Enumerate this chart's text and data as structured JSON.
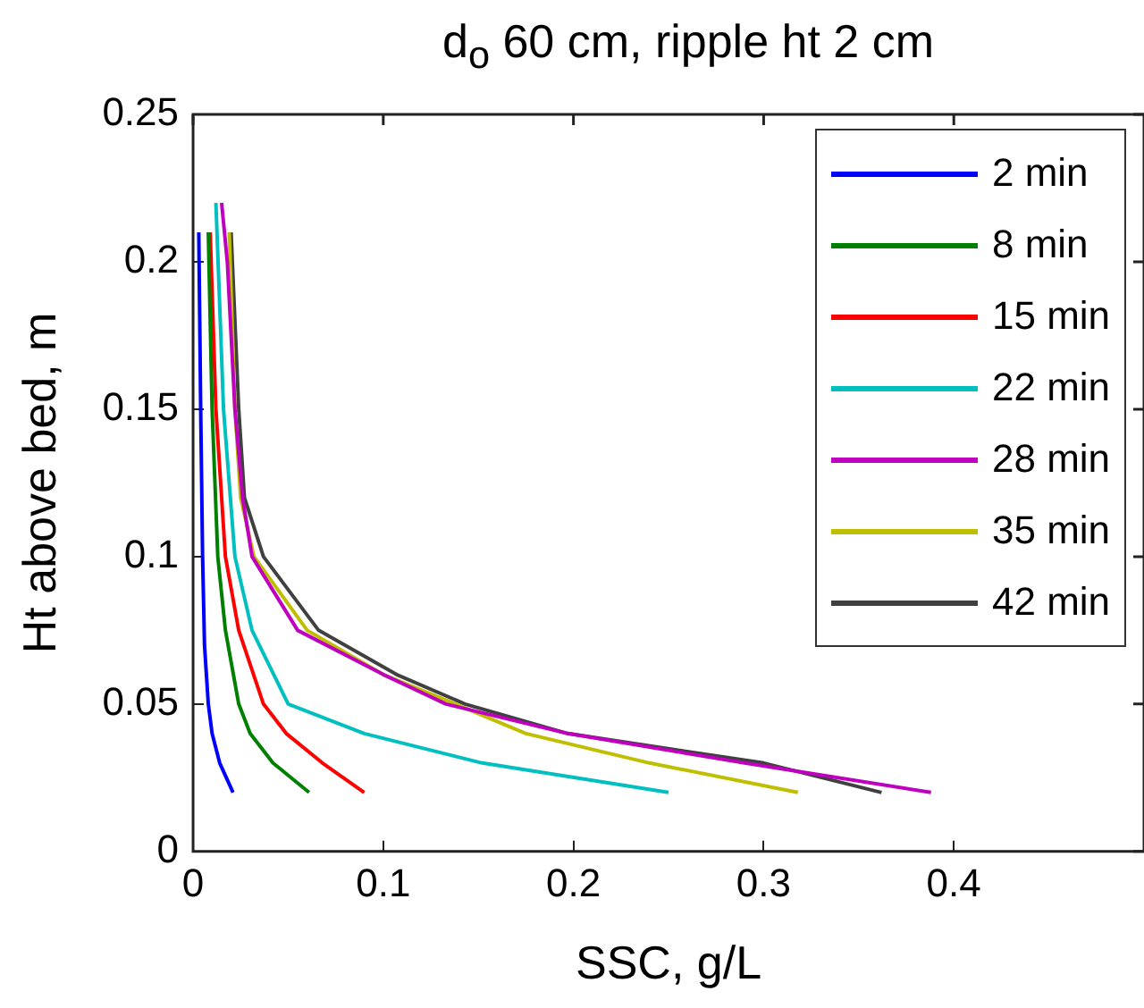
{
  "chart_data": {
    "type": "line",
    "title": "d$_{o}$ 60 cm, ripple ht 2 cm",
    "xlabel": "SSC, g/L",
    "ylabel": "Ht above bed, m",
    "xlim": [
      0,
      0.5
    ],
    "xticks": [
      0,
      0.1,
      0.2,
      0.3,
      0.4
    ],
    "ylim": [
      0,
      0.25
    ],
    "yticks": [
      0,
      0.05,
      0.1,
      0.15,
      0.2,
      0.25
    ],
    "grid": false,
    "legend": "top right",
    "marker": "none",
    "line_style": "solid",
    "series": [
      {
        "name": "2 min",
        "color": "#0000ff",
        "x": [
          0.021,
          0.014,
          0.01,
          0.008,
          0.006,
          0.005,
          0.004,
          0.003
        ],
        "values": [
          0.02,
          0.03,
          0.04,
          0.05,
          0.07,
          0.1,
          0.15,
          0.21
        ]
      },
      {
        "name": "8 min",
        "color": "#008000",
        "x": [
          0.061,
          0.042,
          0.03,
          0.024,
          0.017,
          0.013,
          0.01,
          0.008
        ],
        "values": [
          0.02,
          0.03,
          0.04,
          0.05,
          0.075,
          0.1,
          0.15,
          0.21
        ]
      },
      {
        "name": "15 min",
        "color": "#ff0000",
        "x": [
          0.09,
          0.068,
          0.049,
          0.037,
          0.024,
          0.017,
          0.012,
          0.009
        ],
        "values": [
          0.02,
          0.03,
          0.04,
          0.05,
          0.075,
          0.1,
          0.15,
          0.21
        ]
      },
      {
        "name": "22 min",
        "color": "#00bfbf",
        "x": [
          0.25,
          0.152,
          0.09,
          0.05,
          0.031,
          0.022,
          0.016,
          0.012
        ],
        "values": [
          0.02,
          0.03,
          0.04,
          0.05,
          0.075,
          0.1,
          0.15,
          0.22
        ]
      },
      {
        "name": "28 min",
        "color": "#bf00bf",
        "x": [
          0.388,
          0.29,
          0.197,
          0.133,
          0.1,
          0.055,
          0.031,
          0.026,
          0.022,
          0.018,
          0.015
        ],
        "values": [
          0.02,
          0.03,
          0.04,
          0.05,
          0.06,
          0.075,
          0.1,
          0.12,
          0.15,
          0.2,
          0.22
        ]
      },
      {
        "name": "35 min",
        "color": "#bfbf00",
        "x": [
          0.318,
          0.24,
          0.175,
          0.138,
          0.1,
          0.06,
          0.032,
          0.025,
          0.022,
          0.019
        ],
        "values": [
          0.02,
          0.03,
          0.04,
          0.05,
          0.06,
          0.075,
          0.1,
          0.12,
          0.15,
          0.21
        ]
      },
      {
        "name": "42 min",
        "color": "#404040",
        "x": [
          0.362,
          0.3,
          0.197,
          0.143,
          0.107,
          0.066,
          0.037,
          0.027,
          0.024,
          0.02
        ],
        "values": [
          0.02,
          0.03,
          0.04,
          0.05,
          0.06,
          0.075,
          0.1,
          0.12,
          0.15,
          0.21
        ]
      }
    ]
  }
}
